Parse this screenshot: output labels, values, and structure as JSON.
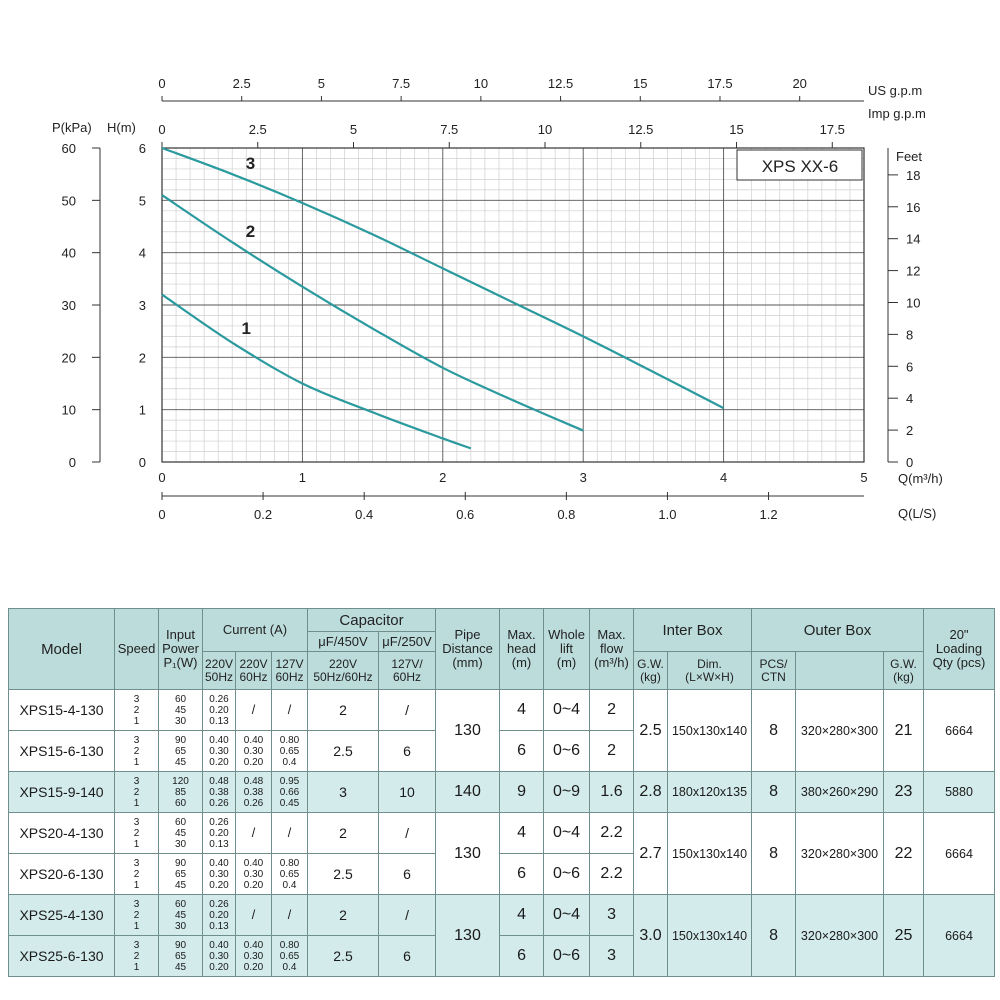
{
  "chart_data": {
    "type": "line",
    "title": "XPS XX-6",
    "xlabel": "Q(m³/h)",
    "x2label": "Q(L/S)",
    "ylabel_left_m": "H(m)",
    "ylabel_left_kpa": "P(kPa)",
    "ylabel_right": "Feet",
    "top_axis_us": "US  g.p.m",
    "top_axis_imp": "Imp  g.p.m",
    "xlim": [
      0,
      5
    ],
    "ylim": [
      0,
      6
    ],
    "x_ticks": [
      "0",
      "1",
      "2",
      "3",
      "4",
      "5"
    ],
    "ls_ticks": [
      "0",
      "0.2",
      "0.4",
      "0.6",
      "0.8",
      "1.0",
      "1.2"
    ],
    "ls_values": [
      0,
      0.2,
      0.4,
      0.6,
      0.8,
      1.0,
      1.2
    ],
    "h_ticks": [
      "0",
      "1",
      "2",
      "3",
      "4",
      "5",
      "6"
    ],
    "kpa_ticks": [
      "0",
      "10",
      "20",
      "30",
      "40",
      "50",
      "60"
    ],
    "feet_ticks": [
      "0",
      "2",
      "4",
      "6",
      "8",
      "10",
      "12",
      "14",
      "16",
      "18"
    ],
    "feet_values": [
      0,
      2,
      4,
      6,
      8,
      10,
      12,
      14,
      16,
      18
    ],
    "us_ticks": [
      "0",
      "2.5",
      "5",
      "7.5",
      "10",
      "12.5",
      "15",
      "17.5",
      "20"
    ],
    "us_values": [
      0,
      2.5,
      5,
      7.5,
      10,
      12.5,
      15,
      17.5,
      20
    ],
    "imp_ticks": [
      "0",
      "2.5",
      "5",
      "7.5",
      "10",
      "12.5",
      "15",
      "17.5"
    ],
    "imp_values": [
      0,
      2.5,
      5,
      7.5,
      10,
      12.5,
      15,
      17.5
    ],
    "series": [
      {
        "name": "1",
        "x": [
          0,
          0.5,
          1.0,
          1.5,
          2.0,
          2.2
        ],
        "y": [
          3.2,
          2.28,
          1.5,
          0.95,
          0.45,
          0.26
        ]
      },
      {
        "name": "2",
        "x": [
          0,
          0.5,
          1.0,
          1.5,
          2.0,
          2.5,
          3.0
        ],
        "y": [
          5.1,
          4.2,
          3.35,
          2.55,
          1.8,
          1.18,
          0.6
        ]
      },
      {
        "name": "3",
        "x": [
          0,
          0.5,
          1.0,
          1.5,
          2.0,
          2.5,
          3.0,
          3.5,
          4.0
        ],
        "y": [
          6.0,
          5.5,
          4.95,
          4.35,
          3.7,
          3.05,
          2.4,
          1.72,
          1.03
        ]
      }
    ],
    "curve_color": "#2a9a9e"
  },
  "table": {
    "headers": {
      "model": "Model",
      "speed": "Speed",
      "input_power_1": "Input",
      "input_power_2": "Power",
      "input_power_3": "P₁(W)",
      "current": "Current  (A)",
      "cur_220_50_a": "220V",
      "cur_220_50_b": "50Hz",
      "cur_220_60_a": "220V",
      "cur_220_60_b": "60Hz",
      "cur_127_60_a": "127V",
      "cur_127_60_b": "60Hz",
      "capacitor": "Capacitor",
      "cap_450": "μF/450V",
      "cap_250": "μF/250V",
      "cap_220_a": "220V",
      "cap_220_b": "50Hz/60Hz",
      "cap_127_a": "127V/",
      "cap_127_b": "60Hz",
      "pipe_1": "Pipe",
      "pipe_2": "Distance",
      "pipe_3": "(mm)",
      "maxhead_1": "Max.",
      "maxhead_2": "head",
      "maxhead_3": "(m)",
      "whole_1": "Whole",
      "whole_2": "lift",
      "whole_3": "(m)",
      "maxflow_1": "Max.",
      "maxflow_2": "flow",
      "maxflow_3": "(m³/h)",
      "inter_box": "Inter Box",
      "gw_1": "G.W.",
      "gw_2": "(kg)",
      "dim_1": "Dim.",
      "dim_2": "(L×W×H)",
      "outer_box": "Outer Box",
      "pcs_1": "PCS/",
      "pcs_2": "CTN",
      "ogw_1": "G.W.",
      "ogw_2": "(kg)",
      "load_1": "20\"",
      "load_2": "Loading",
      "load_3": "Qty (pcs)"
    },
    "rows": [
      {
        "model": "XPS15-4-130",
        "speed": [
          "3",
          "2",
          "1"
        ],
        "power": [
          "60",
          "45",
          "30"
        ],
        "c1": [
          "0.26",
          "0.20",
          "0.13"
        ],
        "c2": "/",
        "c3": "/",
        "cap450": "2",
        "cap250": "/",
        "head": "4",
        "lift": "0~4",
        "flow": "2"
      },
      {
        "model": "XPS15-6-130",
        "speed": [
          "3",
          "2",
          "1"
        ],
        "power": [
          "90",
          "65",
          "45"
        ],
        "c1": [
          "0.40",
          "0.30",
          "0.20"
        ],
        "c2": [
          "0.40",
          "0.30",
          "0.20"
        ],
        "c3": [
          "0.80",
          "0.65",
          "0.4"
        ],
        "cap450": "2.5",
        "cap250": "6",
        "head": "6",
        "lift": "0~6",
        "flow": "2"
      },
      {
        "model": "XPS15-9-140",
        "speed": [
          "3",
          "2",
          "1"
        ],
        "power": [
          "120",
          "85",
          "60"
        ],
        "c1": [
          "0.48",
          "0.38",
          "0.26"
        ],
        "c2": [
          "0.48",
          "0.38",
          "0.26"
        ],
        "c3": [
          "0.95",
          "0.66",
          "0.45"
        ],
        "cap450": "3",
        "cap250": "10",
        "head": "9",
        "lift": "0~9",
        "flow": "1.6"
      },
      {
        "model": "XPS20-4-130",
        "speed": [
          "3",
          "2",
          "1"
        ],
        "power": [
          "60",
          "45",
          "30"
        ],
        "c1": [
          "0.26",
          "0.20",
          "0.13"
        ],
        "c2": "/",
        "c3": "/",
        "cap450": "2",
        "cap250": "/",
        "head": "4",
        "lift": "0~4",
        "flow": "2.2"
      },
      {
        "model": "XPS20-6-130",
        "speed": [
          "3",
          "2",
          "1"
        ],
        "power": [
          "90",
          "65",
          "45"
        ],
        "c1": [
          "0.40",
          "0.30",
          "0.20"
        ],
        "c2": [
          "0.40",
          "0.30",
          "0.20"
        ],
        "c3": [
          "0.80",
          "0.65",
          "0.4"
        ],
        "cap450": "2.5",
        "cap250": "6",
        "head": "6",
        "lift": "0~6",
        "flow": "2.2"
      },
      {
        "model": "XPS25-4-130",
        "speed": [
          "3",
          "2",
          "1"
        ],
        "power": [
          "60",
          "45",
          "30"
        ],
        "c1": [
          "0.26",
          "0.20",
          "0.13"
        ],
        "c2": "/",
        "c3": "/",
        "cap450": "2",
        "cap250": "/",
        "head": "4",
        "lift": "0~4",
        "flow": "3"
      },
      {
        "model": "XPS25-6-130",
        "speed": [
          "3",
          "2",
          "1"
        ],
        "power": [
          "90",
          "65",
          "45"
        ],
        "c1": [
          "0.40",
          "0.30",
          "0.20"
        ],
        "c2": [
          "0.40",
          "0.30",
          "0.20"
        ],
        "c3": [
          "0.80",
          "0.65",
          "0.4"
        ],
        "cap450": "2.5",
        "cap250": "6",
        "head": "6",
        "lift": "0~6",
        "flow": "3"
      }
    ],
    "groups": [
      {
        "pipe": "130",
        "gw": "2.5",
        "dim": "150x130x140",
        "pcs": "8",
        "odim": "320×280×300",
        "ogw": "21",
        "qty": "6664"
      },
      {
        "pipe": "140",
        "gw": "2.8",
        "dim": "180x120x135",
        "pcs": "8",
        "odim": "380×260×290",
        "ogw": "23",
        "qty": "5880"
      },
      {
        "pipe": "130",
        "gw": "2.7",
        "dim": "150x130x140",
        "pcs": "8",
        "odim": "320×280×300",
        "ogw": "22",
        "qty": "6664"
      },
      {
        "pipe": "130",
        "gw": "3.0",
        "dim": "150x130x140",
        "pcs": "8",
        "odim": "320×280×300",
        "ogw": "25",
        "qty": "6664"
      }
    ]
  }
}
